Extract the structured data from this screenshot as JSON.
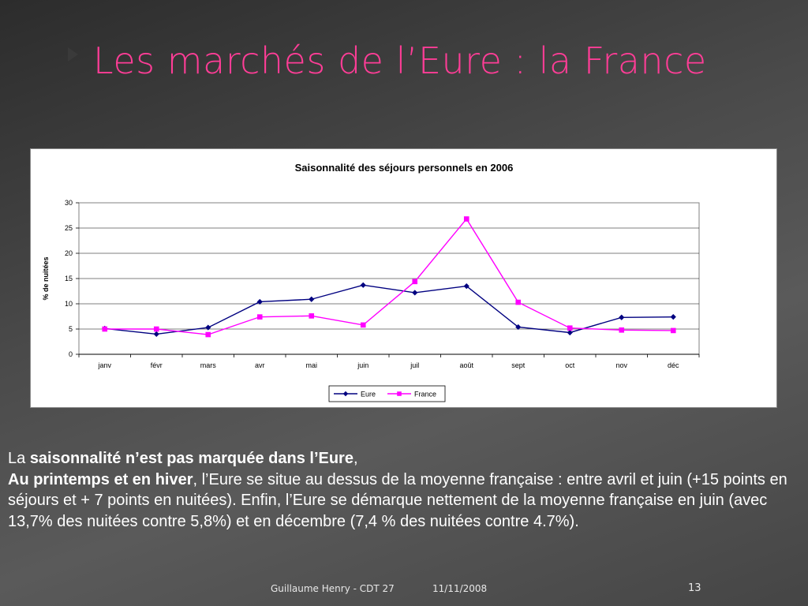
{
  "slide": {
    "title": "Les marchés de l’Eure : la France",
    "footer_author": "Guillaume Henry - CDT 27",
    "footer_date": "11/11/2008",
    "page_number": "13",
    "colors": {
      "title": "#ff3d97",
      "eure": "#000080",
      "france": "#ff00ff"
    }
  },
  "text": {
    "p1_a": "La ",
    "p1_b": "saisonnalité n’est pas marquée dans l’Eure",
    "p1_c": ",",
    "p2_a": "Au printemps et en hiver",
    "p2_b": ", l’Eure se situe au dessus de la moyenne française : entre avril et juin (+15 points en séjours et + 7 points en nuitées). Enfin, l’Eure se démarque nettement de la moyenne française en juin (avec 13,7% des nuitées contre 5,8%) et en décembre (7,4 % des nuitées contre 4.7%)."
  },
  "chart_data": {
    "type": "line",
    "title": "Saisonnalité des séjours personnels en 2006",
    "xlabel": "",
    "ylabel": "% de nuitées",
    "ylim": [
      0,
      30
    ],
    "yticks": [
      "0",
      "5",
      "10",
      "15",
      "20",
      "25",
      "30"
    ],
    "categories": [
      "janv",
      "févr",
      "mars",
      "avr",
      "mai",
      "juin",
      "juil",
      "août",
      "sept",
      "oct",
      "nov",
      "déc"
    ],
    "grid": true,
    "legend": "bottom",
    "series": [
      {
        "name": "Eure",
        "color": "#000080",
        "marker": "diamond",
        "values": [
          5.1,
          4.0,
          5.3,
          10.4,
          10.9,
          13.7,
          12.2,
          13.5,
          5.4,
          4.3,
          7.3,
          7.4
        ]
      },
      {
        "name": "France",
        "color": "#ff00ff",
        "marker": "square",
        "values": [
          5.0,
          5.0,
          3.9,
          7.4,
          7.6,
          5.8,
          14.4,
          26.8,
          10.3,
          5.2,
          4.8,
          4.7
        ]
      }
    ]
  }
}
